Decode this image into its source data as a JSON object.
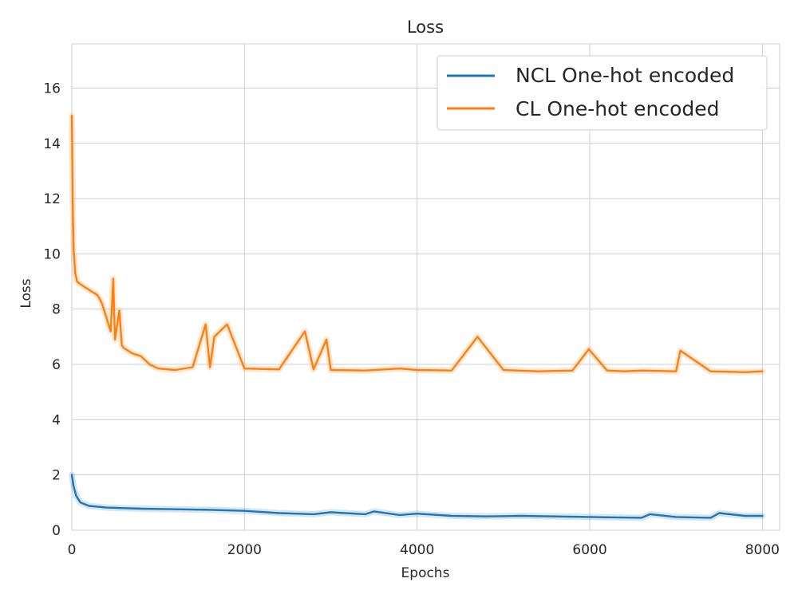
{
  "chart_data": {
    "type": "line",
    "title": "Loss",
    "xlabel": "Epochs",
    "ylabel": "Loss",
    "xlim": [
      0,
      8200
    ],
    "ylim": [
      0,
      17.6
    ],
    "x_ticks": [
      0,
      2000,
      4000,
      6000,
      8000
    ],
    "y_ticks": [
      0,
      2,
      4,
      6,
      8,
      10,
      12,
      14,
      16
    ],
    "x_tick_labels": [
      "0",
      "2000",
      "4000",
      "6000",
      "8000"
    ],
    "y_tick_labels": [
      "0",
      "2",
      "4",
      "6",
      "8",
      "10",
      "12",
      "14",
      "16"
    ],
    "grid": true,
    "legend_position": "top-right",
    "series": [
      {
        "name": "NCL One-hot encoded",
        "color": "#1f77b4",
        "x": [
          0,
          20,
          50,
          100,
          200,
          400,
          800,
          1200,
          1600,
          2000,
          2400,
          2800,
          3000,
          3400,
          3500,
          3800,
          4000,
          4400,
          4800,
          5200,
          5600,
          6000,
          6400,
          6600,
          6700,
          7000,
          7400,
          7500,
          7800,
          8000
        ],
        "y": [
          2.0,
          1.6,
          1.25,
          1.0,
          0.88,
          0.82,
          0.78,
          0.76,
          0.74,
          0.7,
          0.62,
          0.58,
          0.65,
          0.58,
          0.68,
          0.55,
          0.6,
          0.52,
          0.5,
          0.52,
          0.5,
          0.48,
          0.46,
          0.45,
          0.58,
          0.48,
          0.45,
          0.62,
          0.52,
          0.52
        ]
      },
      {
        "name": "CL One-hot encoded",
        "color": "#ff7f0e",
        "x": [
          0,
          10,
          20,
          40,
          60,
          100,
          150,
          200,
          300,
          350,
          400,
          450,
          480,
          500,
          550,
          580,
          600,
          700,
          800,
          900,
          1000,
          1200,
          1400,
          1550,
          1600,
          1650,
          1800,
          2000,
          2400,
          2700,
          2800,
          2950,
          3000,
          3400,
          3800,
          4000,
          4400,
          4700,
          5000,
          5400,
          5800,
          5990,
          6200,
          6400,
          6600,
          7000,
          7050,
          7400,
          7800,
          8000
        ],
        "y": [
          15.0,
          12.0,
          10.2,
          9.3,
          9.0,
          8.9,
          8.8,
          8.7,
          8.5,
          8.2,
          7.7,
          7.2,
          9.1,
          6.9,
          7.95,
          6.7,
          6.6,
          6.4,
          6.3,
          6.0,
          5.85,
          5.8,
          5.9,
          7.45,
          5.9,
          7.0,
          7.45,
          5.85,
          5.82,
          7.2,
          5.82,
          6.9,
          5.8,
          5.78,
          5.85,
          5.8,
          5.78,
          7.0,
          5.8,
          5.75,
          5.78,
          6.55,
          5.78,
          5.75,
          5.78,
          5.75,
          6.5,
          5.75,
          5.72,
          5.75
        ]
      }
    ]
  }
}
